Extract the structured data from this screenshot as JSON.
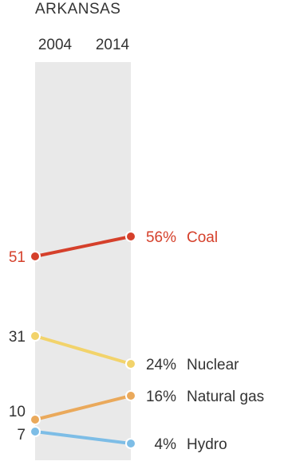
{
  "chart_data": {
    "type": "line",
    "title": "ARKANSAS",
    "x": [
      "2004",
      "2014"
    ],
    "series": [
      {
        "name": "Coal",
        "values": [
          51,
          56
        ],
        "start_label": "51",
        "end_label": "56%",
        "color": "#d5402b",
        "label_color": "#d5402b"
      },
      {
        "name": "Nuclear",
        "values": [
          31,
          24
        ],
        "start_label": "31",
        "end_label": "24%",
        "color": "#f2d36b",
        "label_color": "#333333"
      },
      {
        "name": "Natural gas",
        "values": [
          10,
          16
        ],
        "start_label": "10",
        "end_label": "16%",
        "color": "#eaa95b",
        "label_color": "#333333"
      },
      {
        "name": "Hydro",
        "values": [
          7,
          4
        ],
        "start_label": "7",
        "end_label": "4%",
        "color": "#7dbde6",
        "label_color": "#333333"
      }
    ],
    "ylim": [
      0,
      100
    ],
    "grid": false
  },
  "colors": {
    "band": "#e9e9e9",
    "text": "#333333"
  }
}
